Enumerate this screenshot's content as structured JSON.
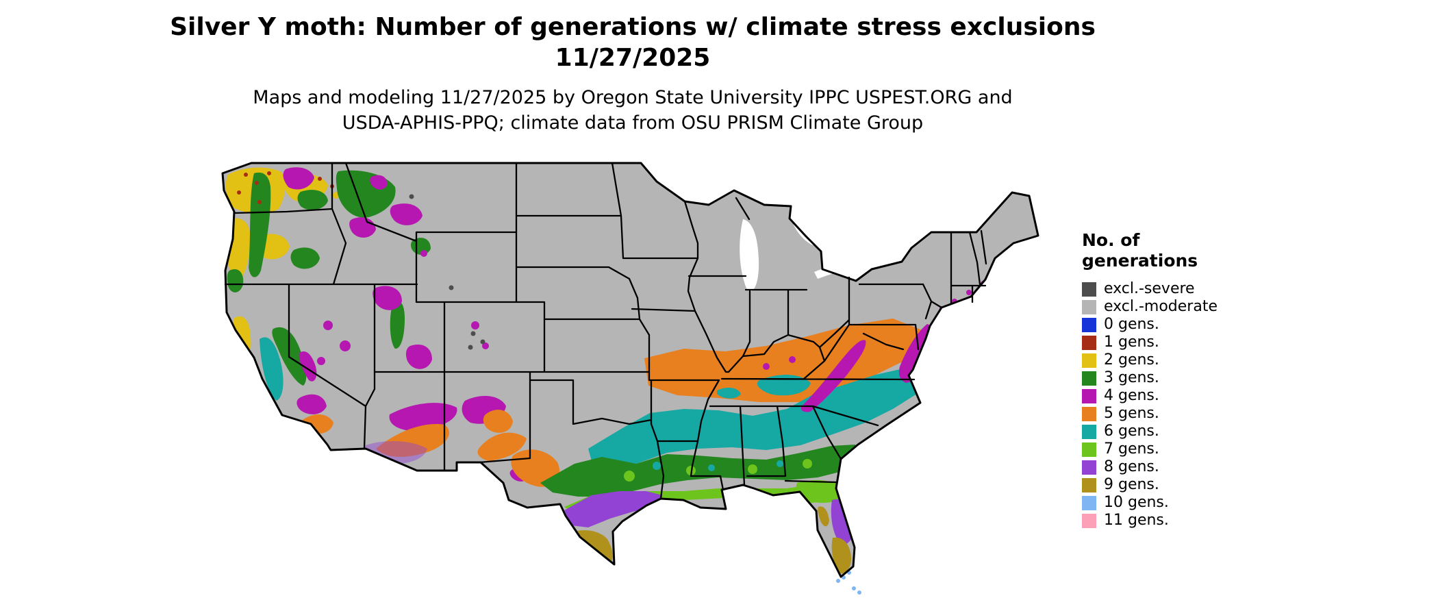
{
  "header": {
    "title_line1": "Silver Y moth: Number of generations w/ climate stress exclusions",
    "title_line2": "11/27/2025",
    "credit_line1": "Maps and modeling 11/27/2025 by Oregon State University IPPC USPEST.ORG and",
    "credit_line2": "USDA-APHIS-PPQ; climate data from OSU PRISM Climate Group"
  },
  "legend": {
    "title_line1": "No. of",
    "title_line2": "generations",
    "entries": [
      {
        "label": "excl.-severe",
        "color": "#4d4d4d"
      },
      {
        "label": "excl.-moderate",
        "color": "#b5b5b5"
      },
      {
        "label": "0 gens.",
        "color": "#1634d8"
      },
      {
        "label": "1 gens.",
        "color": "#a62c16"
      },
      {
        "label": "2 gens.",
        "color": "#e2c114"
      },
      {
        "label": "3 gens.",
        "color": "#23861f"
      },
      {
        "label": "4 gens.",
        "color": "#b517b0"
      },
      {
        "label": "5 gens.",
        "color": "#e8801f"
      },
      {
        "label": "6 gens.",
        "color": "#16a8a3"
      },
      {
        "label": "7 gens.",
        "color": "#6cc41d"
      },
      {
        "label": "8 gens.",
        "color": "#9343d4"
      },
      {
        "label": "9 gens.",
        "color": "#b0911c"
      },
      {
        "label": "10 gens.",
        "color": "#7fb5f2"
      },
      {
        "label": "11 gens.",
        "color": "#fba0b6"
      }
    ]
  },
  "map": {
    "region": "Conterminous United States",
    "excluded_land_color": "#b5b5b5",
    "state_border_color": "#000000",
    "water_color": "#ffffff"
  }
}
